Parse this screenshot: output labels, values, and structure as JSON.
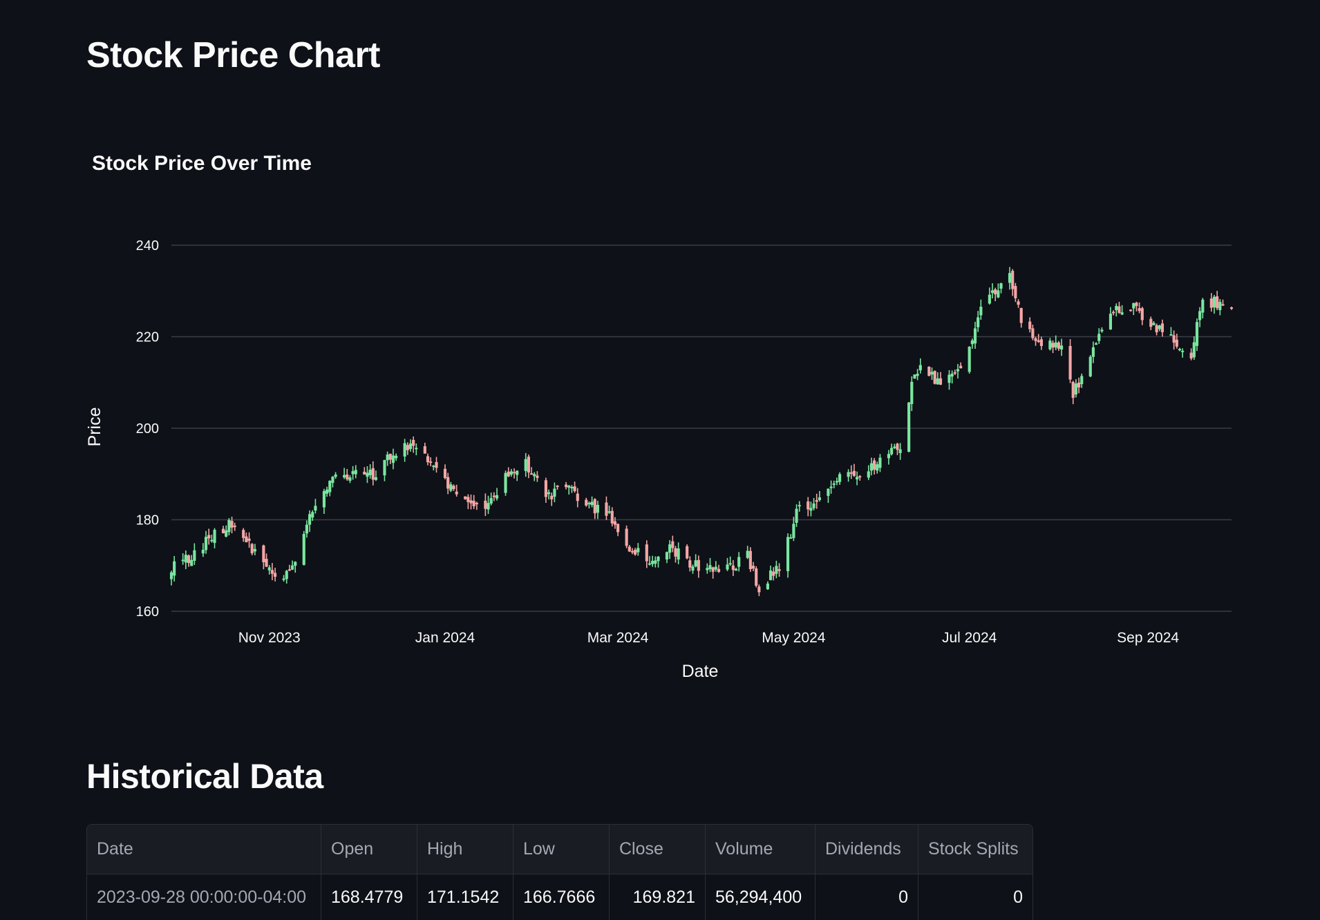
{
  "page": {
    "title": "Stock Price Chart",
    "section_title": "Historical Data"
  },
  "colors": {
    "background": "#0e1117",
    "increasing": "#7ae6a0",
    "decreasing": "#f4a6a6",
    "gridline": "#3a3e47"
  },
  "chart_data": {
    "type": "candlestick",
    "title": "Stock Price Over Time",
    "xlabel": "Date",
    "ylabel": "Price",
    "ylim": [
      160,
      240
    ],
    "yticks": [
      160,
      180,
      200,
      220,
      240
    ],
    "xlim": [
      "2023-09-28",
      "2024-09-30"
    ],
    "xticks": [
      {
        "date": "2023-11-01",
        "label": "Nov 2023"
      },
      {
        "date": "2024-01-01",
        "label": "Jan 2024"
      },
      {
        "date": "2024-03-01",
        "label": "Mar 2024"
      },
      {
        "date": "2024-05-01",
        "label": "May 2024"
      },
      {
        "date": "2024-07-01",
        "label": "Jul 2024"
      },
      {
        "date": "2024-09-01",
        "label": "Sep 2024"
      }
    ],
    "grid": true,
    "close_anchors": [
      [
        "2023-09-28",
        169.8
      ],
      [
        "2023-10-06",
        172.5
      ],
      [
        "2023-10-13",
        177
      ],
      [
        "2023-10-19",
        179.5
      ],
      [
        "2023-10-24",
        175
      ],
      [
        "2023-10-31",
        170.5
      ],
      [
        "2023-11-06",
        167
      ],
      [
        "2023-11-10",
        172
      ],
      [
        "2023-11-14",
        180
      ],
      [
        "2023-11-20",
        186
      ],
      [
        "2023-11-24",
        190
      ],
      [
        "2023-12-01",
        190
      ],
      [
        "2023-12-08",
        190
      ],
      [
        "2023-12-13",
        194
      ],
      [
        "2023-12-18",
        196.5
      ],
      [
        "2023-12-27",
        193.5
      ],
      [
        "2024-01-05",
        185
      ],
      [
        "2024-01-10",
        183
      ],
      [
        "2024-01-16",
        182.5
      ],
      [
        "2024-01-23",
        190
      ],
      [
        "2024-01-29",
        192
      ],
      [
        "2024-02-05",
        185
      ],
      [
        "2024-02-12",
        187.5
      ],
      [
        "2024-02-20",
        183
      ],
      [
        "2024-02-27",
        181.5
      ],
      [
        "2024-03-05",
        174
      ],
      [
        "2024-03-12",
        171
      ],
      [
        "2024-03-19",
        174
      ],
      [
        "2024-03-26",
        170.5
      ],
      [
        "2024-04-02",
        169
      ],
      [
        "2024-04-09",
        169.5
      ],
      [
        "2024-04-15",
        172
      ],
      [
        "2024-04-19",
        165
      ],
      [
        "2024-04-26",
        170
      ],
      [
        "2024-05-03",
        183
      ],
      [
        "2024-05-10",
        184
      ],
      [
        "2024-05-17",
        189
      ],
      [
        "2024-05-24",
        190
      ],
      [
        "2024-05-31",
        193
      ],
      [
        "2024-06-07",
        196
      ],
      [
        "2024-06-12",
        213
      ],
      [
        "2024-06-17",
        212
      ],
      [
        "2024-06-21",
        209
      ],
      [
        "2024-06-28",
        213
      ],
      [
        "2024-07-05",
        226
      ],
      [
        "2024-07-10",
        230
      ],
      [
        "2024-07-15",
        234
      ],
      [
        "2024-07-19",
        224
      ],
      [
        "2024-07-26",
        218
      ],
      [
        "2024-08-02",
        218
      ],
      [
        "2024-08-06",
        207
      ],
      [
        "2024-08-12",
        216
      ],
      [
        "2024-08-19",
        225
      ],
      [
        "2024-08-26",
        227
      ],
      [
        "2024-09-03",
        222
      ],
      [
        "2024-09-09",
        220
      ],
      [
        "2024-09-16",
        216
      ],
      [
        "2024-09-20",
        228
      ],
      [
        "2024-09-27",
        227
      ]
    ]
  },
  "table": {
    "columns": [
      "Date",
      "Open",
      "High",
      "Low",
      "Close",
      "Volume",
      "Dividends",
      "Stock Splits"
    ],
    "rows": [
      [
        "2023-09-28 00:00:00-04:00",
        "168.4779",
        "171.1542",
        "166.7666",
        "169.821",
        "56,294,400",
        "0",
        "0"
      ]
    ]
  }
}
